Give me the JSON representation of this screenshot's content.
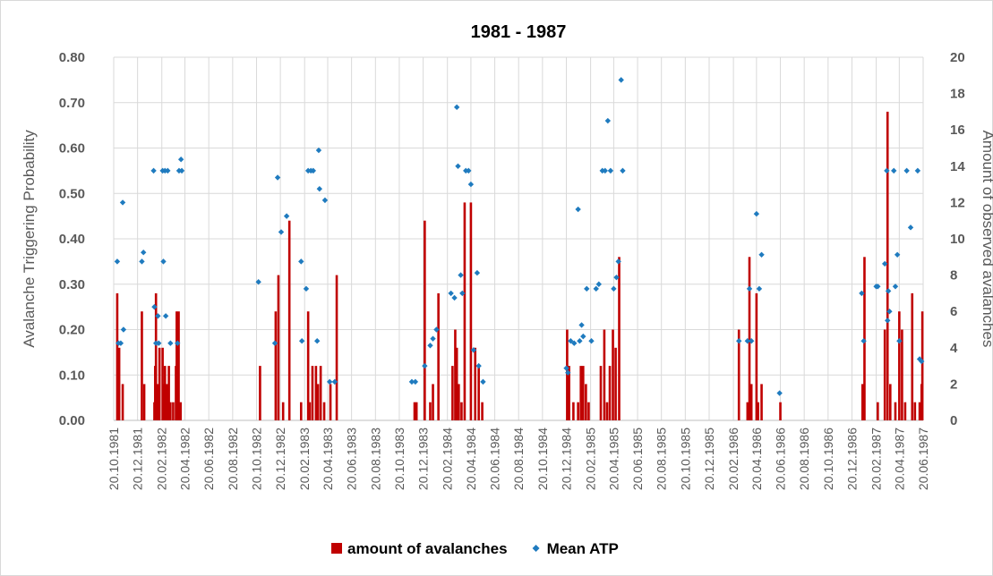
{
  "chart_data": {
    "type": "bar",
    "title": "1981 - 1987",
    "y_label": "Avalanche Triggering Probability",
    "y2_label": "Amount of observed avalanches",
    "xlim": [
      "20.10.1981",
      "20.06.1987"
    ],
    "xticks": [
      "20.10.1981",
      "20.12.1981",
      "20.02.1982",
      "20.04.1982",
      "20.06.1982",
      "20.08.1982",
      "20.10.1982",
      "20.12.1982",
      "20.02.1983",
      "20.04.1983",
      "20.06.1983",
      "20.08.1983",
      "20.10.1983",
      "20.12.1983",
      "20.02.1984",
      "20.04.1984",
      "20.06.1984",
      "20.08.1984",
      "20.10.1984",
      "20.12.1984",
      "20.02.1985",
      "20.04.1985",
      "20.06.1985",
      "20.08.1985",
      "20.10.1985",
      "20.12.1985",
      "20.02.1986",
      "20.04.1986",
      "20.06.1986",
      "20.08.1986",
      "20.10.1986",
      "20.12.1986",
      "20.02.1987",
      "20.04.1987",
      "20.06.1987"
    ],
    "ylim": [
      0,
      0.8
    ],
    "yticks": [
      {
        "value": 0,
        "label": "0.00"
      },
      {
        "value": 0.1,
        "label": "0.10"
      },
      {
        "value": 0.2,
        "label": "0.20"
      },
      {
        "value": 0.3,
        "label": "0.30"
      },
      {
        "value": 0.4,
        "label": "0.40"
      },
      {
        "value": 0.5,
        "label": "0.50"
      },
      {
        "value": 0.6,
        "label": "0.60"
      },
      {
        "value": 0.7,
        "label": "0.70"
      },
      {
        "value": 0.8,
        "label": "0.80"
      }
    ],
    "y2lim": [
      0,
      20
    ],
    "y2ticks": [
      0,
      2,
      4,
      6,
      8,
      10,
      12,
      14,
      16,
      18,
      20
    ],
    "grid": true,
    "legend": "bottom",
    "series": [
      {
        "name": "amount of avalanches",
        "type": "bar",
        "axis": "y2",
        "color": "#c00000",
        "x": [
          "29.10.1981",
          "03.11.1981",
          "12.11.1981",
          "31.12.1981",
          "06.01.1982",
          "01.02.1982",
          "03.02.1982",
          "05.02.1982",
          "10.02.1982",
          "14.02.1982",
          "22.02.1982",
          "24.02.1982",
          "28.02.1982",
          "05.03.1982",
          "10.03.1982",
          "14.03.1982",
          "21.03.1982",
          "28.03.1982",
          "30.03.1982",
          "04.04.1982",
          "09.04.1982",
          "29.10.1982",
          "08.12.1982",
          "15.12.1982",
          "27.12.1982",
          "12.01.1983",
          "11.02.1983",
          "01.03.1983",
          "05.03.1983",
          "12.03.1983",
          "21.03.1983",
          "26.03.1983",
          "02.04.1983",
          "11.04.1983",
          "27.04.1983",
          "13.05.1983",
          "28.11.1983",
          "03.12.1983",
          "24.12.1983",
          "07.01.1984",
          "14.01.1984",
          "28.01.1984",
          "04.03.1984",
          "11.03.1984",
          "15.03.1984",
          "20.03.1984",
          "27.03.1984",
          "04.04.1984",
          "20.04.1984",
          "01.05.1984",
          "10.05.1984",
          "19.05.1984",
          "22.12.1984",
          "27.12.1984",
          "07.01.1985",
          "19.01.1985",
          "26.01.1985",
          "01.02.1985",
          "08.02.1985",
          "15.02.1985",
          "18.03.1985",
          "27.03.1985",
          "03.04.1985",
          "10.04.1985",
          "18.04.1985",
          "25.04.1985",
          "04.05.1985",
          "06.03.1986",
          "28.03.1986",
          "02.04.1986",
          "07.04.1986",
          "20.04.1986",
          "24.04.1986",
          "03.05.1986",
          "20.06.1986",
          "16.01.1987",
          "21.01.1987",
          "24.02.1987",
          "14.03.1987",
          "21.03.1987",
          "28.03.1987",
          "10.04.1987",
          "20.04.1987",
          "27.04.1987",
          "05.05.1987",
          "23.05.1987",
          "30.05.1987",
          "11.06.1987",
          "16.06.1987",
          "18.06.1987"
        ],
        "values": [
          7,
          4,
          2,
          6,
          2,
          1,
          3,
          7,
          2,
          4,
          4,
          2,
          3,
          2,
          3,
          1,
          1,
          3,
          6,
          6,
          1,
          3,
          6,
          8,
          1,
          11,
          1,
          6,
          1,
          3,
          3,
          2,
          3,
          1,
          2,
          8,
          1,
          1,
          11,
          1,
          2,
          7,
          3,
          5,
          4,
          2,
          1,
          12,
          12,
          4,
          3,
          1,
          5,
          3,
          1,
          1,
          3,
          3,
          2,
          1,
          3,
          5,
          1,
          3,
          5,
          4,
          9,
          5,
          1,
          9,
          2,
          7,
          1,
          2,
          1,
          2,
          9,
          1,
          5,
          17,
          2,
          1,
          6,
          5,
          1,
          7,
          1,
          1,
          2,
          6
        ]
      },
      {
        "name": "Mean ATP",
        "type": "scatter",
        "color": "#1f7bbf",
        "x": [
          "29.10.1981",
          "01.11.1981",
          "07.11.1981",
          "12.11.1981",
          "14.11.1981",
          "31.12.1981",
          "04.01.1982",
          "30.01.1982",
          "01.02.1982",
          "05.02.1982",
          "10.02.1982",
          "12.02.1982",
          "22.02.1982",
          "24.02.1982",
          "28.02.1982",
          "02.03.1982",
          "07.03.1982",
          "14.03.1982",
          "01.04.1982",
          "05.04.1982",
          "10.04.1982",
          "12.04.1982",
          "25.10.1982",
          "06.12.1982",
          "13.12.1982",
          "22.12.1982",
          "05.01.1983",
          "11.02.1983",
          "13.02.1983",
          "24.02.1983",
          "01.03.1983",
          "08.03.1983",
          "14.03.1983",
          "24.03.1983",
          "28.03.1983",
          "30.03.1983",
          "13.04.1983",
          "25.04.1983",
          "08.05.1983",
          "21.11.1983",
          "30.11.1983",
          "24.12.1983",
          "07.01.1984",
          "14.01.1984",
          "23.01.1984",
          "29.02.1984",
          "09.03.1984",
          "15.03.1984",
          "18.03.1984",
          "25.03.1984",
          "29.03.1984",
          "07.04.1984",
          "14.04.1984",
          "20.04.1984",
          "27.04.1984",
          "06.05.1984",
          "10.05.1984",
          "21.05.1984",
          "20.12.1984",
          "24.12.1984",
          "31.12.1984",
          "09.01.1985",
          "19.01.1985",
          "23.01.1985",
          "28.01.1985",
          "01.02.1985",
          "10.02.1985",
          "22.02.1985",
          "06.03.1985",
          "13.03.1985",
          "22.03.1985",
          "29.03.1985",
          "05.04.1985",
          "12.04.1985",
          "20.04.1985",
          "27.04.1985",
          "02.05.1985",
          "09.05.1985",
          "13.05.1985",
          "06.03.1986",
          "28.03.1986",
          "02.04.1986",
          "07.04.1986",
          "20.04.1986",
          "27.04.1986",
          "03.05.1986",
          "18.06.1986",
          "14.01.1987",
          "19.01.1987",
          "20.02.1987",
          "24.02.1987",
          "14.03.1987",
          "19.03.1987",
          "21.03.1987",
          "23.03.1987",
          "26.03.1987",
          "06.04.1987",
          "10.04.1987",
          "15.04.1987",
          "20.04.1987",
          "09.05.1987",
          "19.05.1987",
          "06.06.1987",
          "11.06.1987",
          "16.06.1987"
        ],
        "values": [
          0.35,
          0.17,
          0.17,
          0.48,
          0.2,
          0.35,
          0.37,
          0.55,
          0.25,
          0.17,
          0.23,
          0.17,
          0.55,
          0.35,
          0.55,
          0.23,
          0.55,
          0.17,
          0.17,
          0.55,
          0.575,
          0.55,
          0.305,
          0.17,
          0.535,
          0.415,
          0.45,
          0.35,
          0.175,
          0.29,
          0.55,
          0.55,
          0.55,
          0.175,
          0.595,
          0.51,
          0.485,
          0.085,
          0.085,
          0.085,
          0.085,
          0.12,
          0.165,
          0.18,
          0.2,
          0.28,
          0.27,
          0.69,
          0.56,
          0.32,
          0.28,
          0.55,
          0.55,
          0.52,
          0.155,
          0.325,
          0.12,
          0.085,
          0.115,
          0.105,
          0.175,
          0.17,
          0.465,
          0.175,
          0.21,
          0.185,
          0.29,
          0.175,
          0.29,
          0.3,
          0.55,
          0.55,
          0.66,
          0.55,
          0.29,
          0.315,
          0.35,
          0.75,
          0.55,
          0.175,
          0.175,
          0.29,
          0.175,
          0.455,
          0.29,
          0.365,
          0.06,
          0.28,
          0.175,
          0.295,
          0.295,
          0.345,
          0.55,
          0.22,
          0.285,
          0.24,
          0.55,
          0.295,
          0.365,
          0.175,
          0.55,
          0.425,
          0.55,
          0.135,
          0.13
        ]
      }
    ]
  }
}
